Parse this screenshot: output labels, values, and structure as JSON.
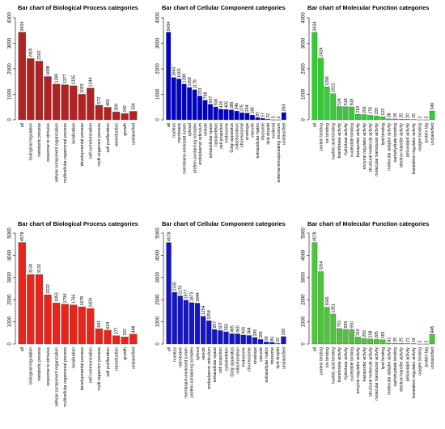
{
  "chart_data": [
    {
      "type": "bar",
      "title": "Bar chart of Biological Process categories",
      "color": "#b22222",
      "ylim": [
        0,
        4000
      ],
      "yticks": [
        0,
        1000,
        2000,
        3000,
        4000
      ],
      "categories": [
        "all",
        "biological regulation",
        "metabolic process",
        "response to stimulus",
        "cellular component organization",
        "multicellular organismal process",
        "localization",
        "developmental process",
        "cell communication",
        "multi-organism process",
        "cell proliferation",
        "reproduction",
        "growth",
        "unclassified"
      ],
      "values": [
        3434,
        2400,
        2302,
        1698,
        1399,
        1377,
        1335,
        1003,
        1244,
        572,
        492,
        309,
        242,
        334
      ],
      "value_labels": [
        "3434",
        "2400",
        "2302",
        "1698",
        "1399",
        "1377",
        "1335",
        "1003",
        "1244",
        "572",
        "492",
        "309",
        "242",
        "334"
      ]
    },
    {
      "type": "bar",
      "title": "Bar chart of Cellular Component categories",
      "color": "#0000cd",
      "ylim": [
        0,
        4000
      ],
      "yticks": [
        0,
        1000,
        2000,
        3000,
        4000
      ],
      "categories": [
        "all",
        "nucleus",
        "membrane",
        "membrane-enclosed lumen",
        "cytosol",
        "protein-containing complex",
        "endoplasmic reticulum",
        "vesicle",
        "extracellular space",
        "cytoskeleton",
        "cell projection",
        "endosome",
        "Golgi apparatus",
        "mitochondrion",
        "chromosome",
        "envelope",
        "vacuole",
        "extracellular matrix",
        "ribosome",
        "lipid droplet",
        "nucleoid",
        "external encapsulating structure",
        "unclassified"
      ],
      "values": [
        3434,
        1660,
        1603,
        1399,
        1269,
        1178,
        933,
        768,
        607,
        508,
        415,
        405,
        389,
        346,
        275,
        264,
        186,
        87,
        57,
        22,
        3,
        2,
        284
      ],
      "value_labels": [
        "3434",
        "1660",
        "1603",
        "1399",
        "1269",
        "1178",
        "933",
        "768",
        "607",
        "508",
        "415",
        "405",
        "389",
        "346",
        "275",
        "264",
        "186",
        "87",
        "57",
        "22",
        "3",
        "2",
        "284"
      ]
    },
    {
      "type": "bar",
      "title": "Bar chart of Molecular Function categories",
      "color": "#32cd32",
      "ylim": [
        0,
        4000
      ],
      "yticks": [
        0,
        1000,
        2000,
        3000,
        4000
      ],
      "categories": [
        "all",
        "protein binding",
        "ion binding",
        "nucleic acid binding",
        "transferase activity",
        "hydrolase activity",
        "nucleotide binding",
        "transporter activity",
        "enzyme regulator activity",
        "structural molecule activity",
        "molecular transducer activity",
        "lipid binding",
        "molecular adaptor activity",
        "carbohydrate binding",
        "electron transfer activity",
        "antioxidant activity",
        "translation regulator activity",
        "oxygen binding",
        "protein tag",
        "unclassified"
      ],
      "values": [
        3434,
        2424,
        1296,
        1022,
        524,
        518,
        508,
        218,
        206,
        178,
        155,
        122,
        38,
        36,
        25,
        20,
        15,
        2,
        2,
        349
      ],
      "value_labels": [
        "3434",
        "2424",
        "1296",
        "1022",
        "524",
        "518",
        "508",
        "218",
        "206",
        "178",
        "155",
        "122",
        "38",
        "36",
        "25",
        "20",
        "15",
        "2",
        "2",
        "349"
      ]
    },
    {
      "type": "bar",
      "title": "Bar chart of Biological Process categories",
      "color": "#e8251b",
      "ylim": [
        0,
        5000
      ],
      "yticks": [
        0,
        1000,
        2000,
        3000,
        4000,
        5000
      ],
      "categories": [
        "all",
        "biological regulation",
        "metabolic process",
        "response to stimulus",
        "cellular component organization",
        "multicellular organismal process",
        "localization",
        "developmental process",
        "cell communication",
        "multi-organism process",
        "cell proliferation",
        "reproduction",
        "growth",
        "unclassified"
      ],
      "values": [
        4578,
        3134,
        3132,
        2222,
        1853,
        1794,
        1766,
        1678,
        1604,
        691,
        624,
        377,
        322,
        448
      ],
      "value_labels": [
        "4578",
        "3134",
        "3132",
        "2222",
        "1853",
        "1794",
        "1766",
        "1678",
        "1604",
        "691",
        "624",
        "377",
        "322",
        "448"
      ]
    },
    {
      "type": "bar",
      "title": "Bar chart of Cellular Component categories",
      "color": "#1515c8",
      "ylim": [
        0,
        5000
      ],
      "yticks": [
        0,
        1000,
        2000,
        3000,
        4000,
        5000
      ],
      "categories": [
        "all",
        "nucleus",
        "membrane",
        "membrane-enclosed lumen",
        "protein-containing complex",
        "cytosol",
        "vesicle",
        "endoplasmic reticulum",
        "extracellular space",
        "cell projection",
        "cytoskeleton",
        "Golgi apparatus",
        "mitochondrion",
        "endosome",
        "chromosome",
        "envelope",
        "vacuole",
        "extracellular matrix",
        "ribosome",
        "lipid droplet",
        "unclassified"
      ],
      "values": [
        4578,
        2335,
        2170,
        1977,
        1873,
        1844,
        1254,
        1054,
        657,
        607,
        550,
        465,
        460,
        406,
        384,
        295,
        205,
        95,
        81,
        22,
        335
      ],
      "value_labels": [
        "4578",
        "2335",
        "2170",
        "1977",
        "1873",
        "1844",
        "1254",
        "1054",
        "657",
        "607",
        "550",
        "465",
        "460",
        "406",
        "384",
        "295",
        "205",
        "95",
        "81",
        "22",
        "335"
      ]
    },
    {
      "type": "bar",
      "title": "Bar chart of Molecular Function categories",
      "color": "#4cc63a",
      "ylim": [
        0,
        5000
      ],
      "yticks": [
        0,
        1000,
        2000,
        3000,
        4000,
        5000
      ],
      "categories": [
        "all",
        "protein binding",
        "ion binding",
        "nucleic acid binding",
        "transferase activity",
        "hydrolase activity",
        "nucleotide binding",
        "enzyme regulator activity",
        "transporter activity",
        "structural molecule activity",
        "molecular transducer activity",
        "lipid binding",
        "molecular adaptor activity",
        "carbohydrate binding",
        "electron transfer activity",
        "antioxidant activity",
        "translation regulator activity",
        "oxygen binding",
        "protein tag",
        "unclassified"
      ],
      "values": [
        4578,
        3264,
        1660,
        1351,
        701,
        659,
        650,
        316,
        256,
        228,
        205,
        193,
        41,
        35,
        25,
        21,
        19,
        2,
        2,
        445
      ],
      "value_labels": [
        "4578",
        "3264",
        "1660",
        "1351",
        "701",
        "659",
        "650",
        "316",
        "256",
        "228",
        "205",
        "193",
        "41",
        "35",
        "25",
        "21",
        "19",
        "2",
        "2",
        "445"
      ]
    }
  ]
}
